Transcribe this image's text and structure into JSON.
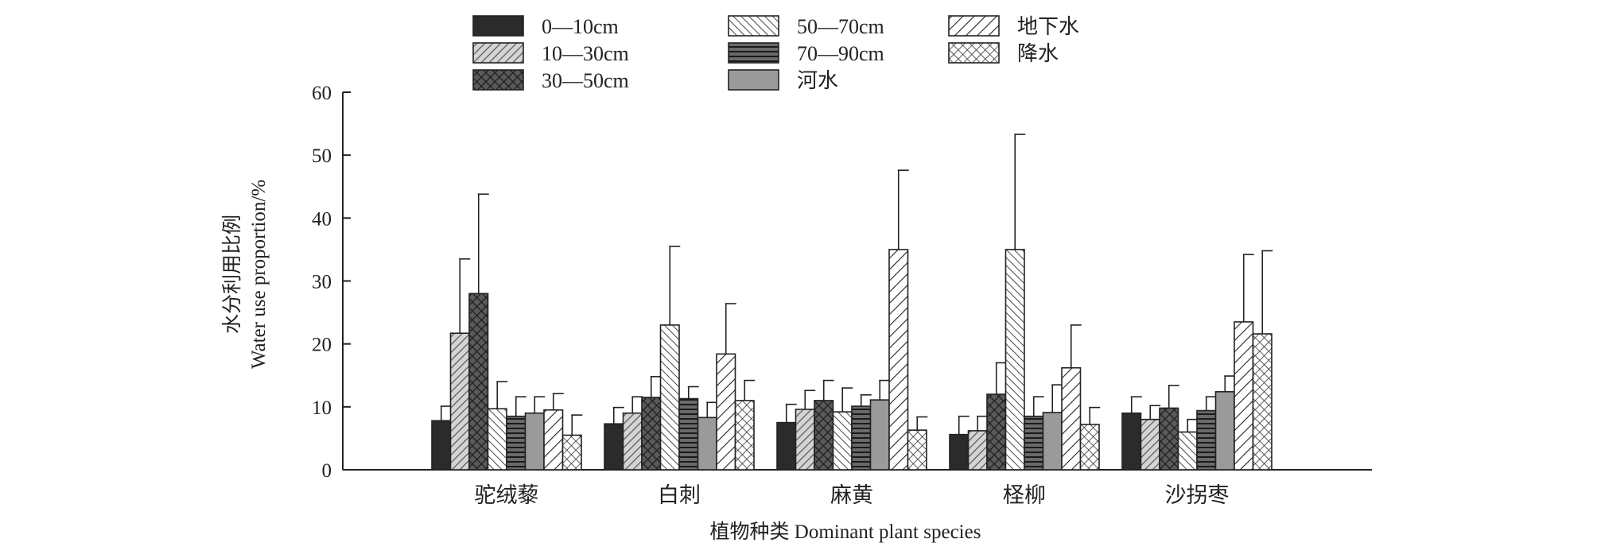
{
  "chart_data": {
    "type": "bar",
    "xlabel": "植物种类 Dominant plant species",
    "ylabel_line1": "水分利用比例",
    "ylabel_line2": "Water use proportion/%",
    "ylim": [
      0,
      60
    ],
    "yticks": [
      0,
      10,
      20,
      30,
      40,
      50,
      60
    ],
    "grid": false,
    "legend_position": "top",
    "categories": [
      "驼绒藜",
      "白刺",
      "麻黄",
      "柽柳",
      "沙拐枣"
    ],
    "series": [
      {
        "name": "0—10cm",
        "pattern": "solid-dark",
        "values": [
          7.8,
          7.3,
          7.5,
          5.6,
          9.0
        ],
        "errors": [
          2.3,
          2.6,
          2.9,
          2.9,
          2.6
        ]
      },
      {
        "name": "10—30cm",
        "pattern": "diag-dense",
        "values": [
          21.7,
          9.0,
          9.6,
          6.2,
          8.0
        ],
        "errors": [
          11.8,
          2.6,
          3.0,
          2.3,
          2.2
        ]
      },
      {
        "name": "30—50cm",
        "pattern": "crosshatch-dark",
        "values": [
          28.0,
          11.5,
          11.0,
          12.0,
          9.8
        ],
        "errors": [
          15.8,
          3.3,
          3.2,
          5.0,
          3.6
        ]
      },
      {
        "name": "50—70cm",
        "pattern": "backdiag",
        "values": [
          9.7,
          23.0,
          9.2,
          35.0,
          6.0
        ],
        "errors": [
          4.3,
          12.5,
          3.8,
          18.3,
          2.0
        ]
      },
      {
        "name": "70—90cm",
        "pattern": "horizontal",
        "values": [
          8.5,
          11.3,
          10.1,
          8.5,
          9.4
        ],
        "errors": [
          3.1,
          1.9,
          1.8,
          3.1,
          2.2
        ]
      },
      {
        "name": "河水",
        "pattern": "solid-gray",
        "values": [
          9.0,
          8.3,
          11.1,
          9.1,
          12.4
        ],
        "errors": [
          2.6,
          2.4,
          3.1,
          4.4,
          2.5
        ]
      },
      {
        "name": "地下水",
        "pattern": "diag-wide",
        "values": [
          9.5,
          18.4,
          35.0,
          16.2,
          23.5
        ],
        "errors": [
          2.6,
          8.0,
          12.6,
          6.8,
          10.7
        ]
      },
      {
        "name": "降水",
        "pattern": "crosshatch-light",
        "values": [
          5.5,
          11.0,
          6.3,
          7.2,
          21.6
        ],
        "errors": [
          3.2,
          3.2,
          2.1,
          2.7,
          13.2
        ]
      }
    ]
  }
}
